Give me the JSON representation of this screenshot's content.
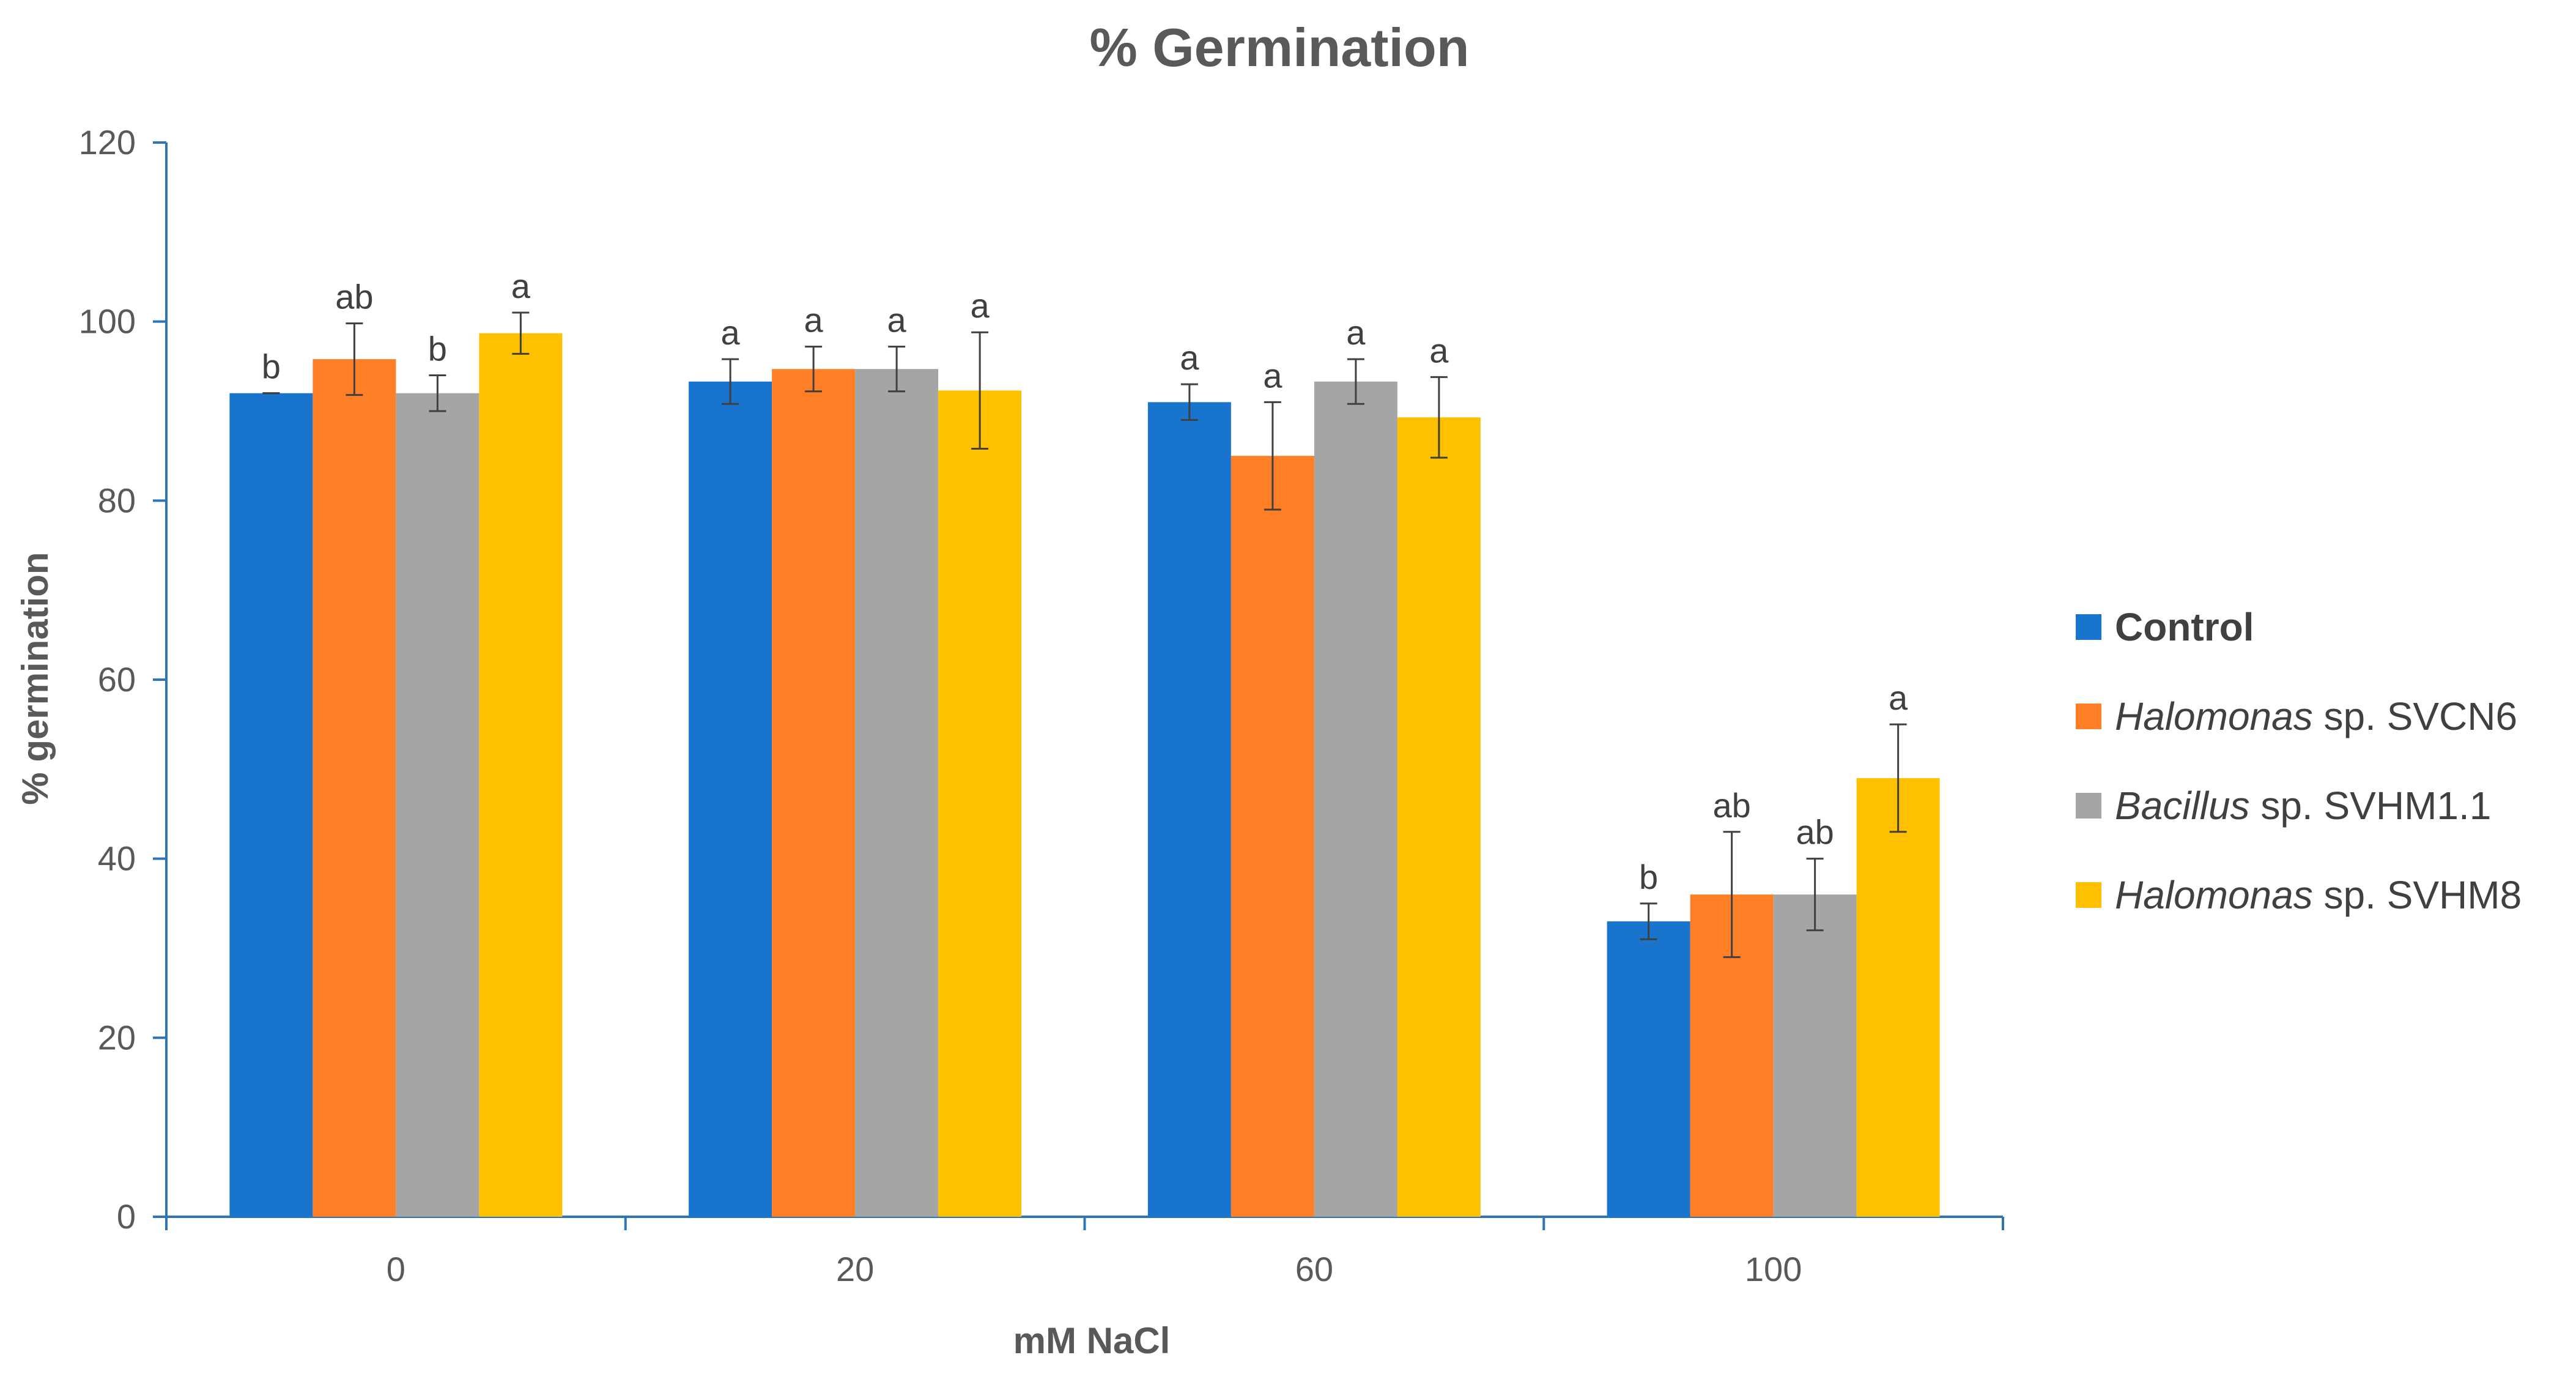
{
  "chart_data": {
    "type": "bar",
    "title": "% Germination",
    "xlabel": "mM NaCl",
    "ylabel": "% germination",
    "ylim": [
      0,
      120
    ],
    "yticks": [
      0,
      20,
      40,
      60,
      80,
      100,
      120
    ],
    "categories": [
      "0",
      "20",
      "60",
      "100"
    ],
    "series": [
      {
        "name": "Control",
        "italic": "",
        "rest": "Control",
        "color": "#1874CD",
        "values": [
          92,
          93.3,
          91,
          33
        ],
        "errors": [
          0,
          2.5,
          2,
          2
        ],
        "labels": [
          "b",
          "a",
          "a",
          "b"
        ]
      },
      {
        "name": "Halomonas sp. SVCN6",
        "italic": "Halomonas",
        "rest": " sp. SVCN6",
        "color": "#FF7F27",
        "values": [
          95.8,
          94.7,
          85,
          36
        ],
        "errors": [
          4,
          2.5,
          6,
          7
        ],
        "labels": [
          "ab",
          "a",
          "a",
          "ab"
        ]
      },
      {
        "name": "Bacillus sp. SVHM1.1",
        "italic": "Bacillus",
        "rest": " sp. SVHM1.1",
        "color": "#A5A5A5",
        "values": [
          92,
          94.7,
          93.3,
          36
        ],
        "errors": [
          2,
          2.5,
          2.5,
          4
        ],
        "labels": [
          "b",
          "a",
          "a",
          "ab"
        ]
      },
      {
        "name": "Halomonas sp. SVHM8",
        "italic": "Halomonas",
        "rest": " sp. SVHM8",
        "color": "#FFC000",
        "values": [
          98.7,
          92.3,
          89.3,
          49
        ],
        "errors": [
          2.3,
          6.5,
          4.5,
          6
        ],
        "labels": [
          "a",
          "a",
          "a",
          "a"
        ]
      }
    ],
    "axis_color": "#2E75B6",
    "legend_position": "right",
    "grid": false
  }
}
